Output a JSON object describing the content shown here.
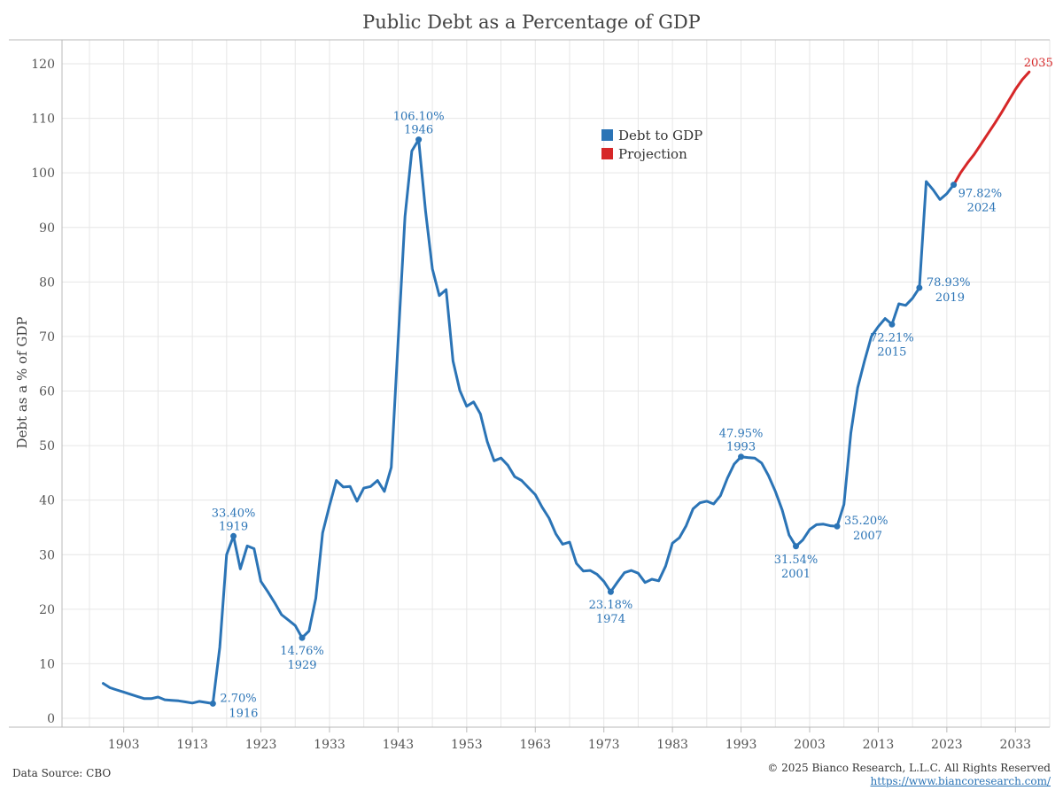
{
  "footer": {
    "source": "Data Source: CBO",
    "copyright": "© 2025 Bianco Research, L.L.C. All Rights Reserved",
    "url": "https://www.biancoresearch.com/"
  },
  "colors": {
    "actual": "#2b74b6",
    "projection": "#d62728",
    "grid": "#e6e6e6",
    "axis": "#b9b9b9"
  },
  "chart_data": {
    "type": "line",
    "title": "Public Debt as a Percentage of GDP",
    "xlabel": "",
    "ylabel": "Debt as a % of GDP",
    "xlim": [
      1894,
      2038
    ],
    "ylim": [
      0,
      120
    ],
    "x_ticks": [
      1903,
      1913,
      1923,
      1933,
      1943,
      1953,
      1963,
      1973,
      1983,
      1993,
      2003,
      2013,
      2023,
      2033
    ],
    "y_ticks": [
      0,
      10,
      20,
      30,
      40,
      50,
      60,
      70,
      80,
      90,
      100,
      110,
      120
    ],
    "grid": true,
    "legend_position": "top-center",
    "series": [
      {
        "name": "Debt to GDP",
        "color": "#2b74b6",
        "x": [
          1900,
          1901,
          1902,
          1903,
          1904,
          1905,
          1906,
          1907,
          1908,
          1909,
          1910,
          1911,
          1912,
          1913,
          1914,
          1915,
          1916,
          1917,
          1918,
          1919,
          1920,
          1921,
          1922,
          1923,
          1924,
          1925,
          1926,
          1927,
          1928,
          1929,
          1930,
          1931,
          1932,
          1933,
          1934,
          1935,
          1936,
          1937,
          1938,
          1939,
          1940,
          1941,
          1942,
          1943,
          1944,
          1945,
          1946,
          1947,
          1948,
          1949,
          1950,
          1951,
          1952,
          1953,
          1954,
          1955,
          1956,
          1957,
          1958,
          1959,
          1960,
          1961,
          1962,
          1963,
          1964,
          1965,
          1966,
          1967,
          1968,
          1969,
          1970,
          1971,
          1972,
          1973,
          1974,
          1975,
          1976,
          1977,
          1978,
          1979,
          1980,
          1981,
          1982,
          1983,
          1984,
          1985,
          1986,
          1987,
          1988,
          1989,
          1990,
          1991,
          1992,
          1993,
          1994,
          1995,
          1996,
          1997,
          1998,
          1999,
          2000,
          2001,
          2002,
          2003,
          2004,
          2005,
          2006,
          2007,
          2008,
          2009,
          2010,
          2011,
          2012,
          2013,
          2014,
          2015,
          2016,
          2017,
          2018,
          2019,
          2020,
          2021,
          2022,
          2023,
          2024
        ],
        "values": [
          6.4,
          5.6,
          5.2,
          4.8,
          4.4,
          4.0,
          3.6,
          3.6,
          3.9,
          3.4,
          3.3,
          3.2,
          3.0,
          2.8,
          3.1,
          2.9,
          2.7,
          13.0,
          30.0,
          33.4,
          27.4,
          31.6,
          31.1,
          25.1,
          23.2,
          21.2,
          19.0,
          18.0,
          17.0,
          14.76,
          16.0,
          22.0,
          34.0,
          39.0,
          43.6,
          42.4,
          42.5,
          39.8,
          42.2,
          42.5,
          43.6,
          41.6,
          46.0,
          69.0,
          92.0,
          104.0,
          106.1,
          93.0,
          82.4,
          77.5,
          78.6,
          65.5,
          60.1,
          57.2,
          58.0,
          55.8,
          50.7,
          47.2,
          47.7,
          46.4,
          44.3,
          43.6,
          42.3,
          41.0,
          38.7,
          36.7,
          33.8,
          31.9,
          32.3,
          28.4,
          27.0,
          27.1,
          26.4,
          25.1,
          23.18,
          25.0,
          26.7,
          27.1,
          26.6,
          24.9,
          25.5,
          25.2,
          27.9,
          32.1,
          33.1,
          35.3,
          38.4,
          39.5,
          39.8,
          39.3,
          40.8,
          44.0,
          46.6,
          47.95,
          47.8,
          47.7,
          46.8,
          44.5,
          41.6,
          38.2,
          33.6,
          31.54,
          32.7,
          34.6,
          35.5,
          35.6,
          35.3,
          35.2,
          39.2,
          52.3,
          60.6,
          65.5,
          70.0,
          71.8,
          73.3,
          72.21,
          76.0,
          75.7,
          77.0,
          78.93,
          98.4,
          96.9,
          95.1,
          96.2,
          97.82
        ]
      },
      {
        "name": "Projection",
        "color": "#d62728",
        "x": [
          2024,
          2025,
          2026,
          2027,
          2028,
          2029,
          2030,
          2031,
          2032,
          2033,
          2034,
          2035
        ],
        "values": [
          97.82,
          100.0,
          101.8,
          103.4,
          105.3,
          107.2,
          109.1,
          111.1,
          113.2,
          115.3,
          117.1,
          118.5
        ]
      }
    ],
    "annotations": [
      {
        "x": 1916,
        "y": 2.7,
        "value": "2.70%",
        "year": "1916",
        "pos": "right"
      },
      {
        "x": 1919,
        "y": 33.4,
        "value": "33.40%",
        "year": "1919",
        "pos": "above"
      },
      {
        "x": 1929,
        "y": 14.76,
        "value": "14.76%",
        "year": "1929",
        "pos": "below"
      },
      {
        "x": 1946,
        "y": 106.1,
        "value": "106.10%",
        "year": "1946",
        "pos": "above"
      },
      {
        "x": 1974,
        "y": 23.18,
        "value": "23.18%",
        "year": "1974",
        "pos": "below"
      },
      {
        "x": 1993,
        "y": 47.95,
        "value": "47.95%",
        "year": "1993",
        "pos": "above"
      },
      {
        "x": 2001,
        "y": 31.54,
        "value": "31.54%",
        "year": "2001",
        "pos": "below"
      },
      {
        "x": 2007,
        "y": 35.2,
        "value": "35.20%",
        "year": "2007",
        "pos": "right"
      },
      {
        "x": 2015,
        "y": 72.21,
        "value": "72.21%",
        "year": "2015",
        "pos": "below"
      },
      {
        "x": 2019,
        "y": 78.93,
        "value": "78.93%",
        "year": "2019",
        "pos": "right"
      },
      {
        "x": 2024,
        "y": 97.82,
        "value": "97.82%",
        "year": "2024",
        "pos": "right-below"
      }
    ],
    "end_label": {
      "x": 2035,
      "y": 118.5,
      "text": "2035"
    },
    "legend": [
      "Debt to GDP",
      "Projection"
    ]
  }
}
